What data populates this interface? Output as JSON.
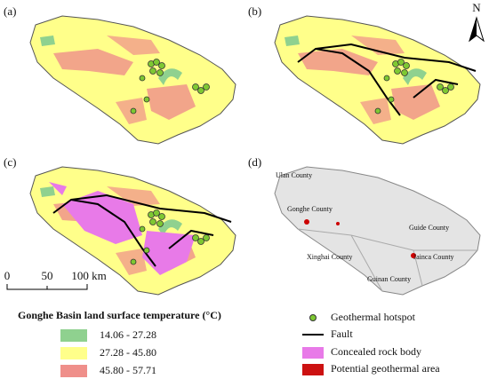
{
  "panels": [
    {
      "label": "(a)"
    },
    {
      "label": "(b)"
    },
    {
      "label": "(c)"
    },
    {
      "label": "(d)"
    }
  ],
  "north": "N",
  "scale_bar": {
    "labels": [
      "0",
      "50",
      "100 km"
    ]
  },
  "counties": [
    "Ulan County",
    "Gonghe County",
    "Guide County",
    "Xinghai County",
    "Jainca County",
    "Guinan County"
  ],
  "legend_temperature": {
    "title": "Gonghe Basin land surface temperature (°C)",
    "items": [
      "14.06 - 27.28",
      "27.28 - 45.80",
      "45.80 - 57.71"
    ]
  },
  "legend_features": {
    "items": [
      "Geothermal hotspot",
      "Fault",
      "Concealed rock body",
      "Potential geothermal area"
    ]
  }
}
